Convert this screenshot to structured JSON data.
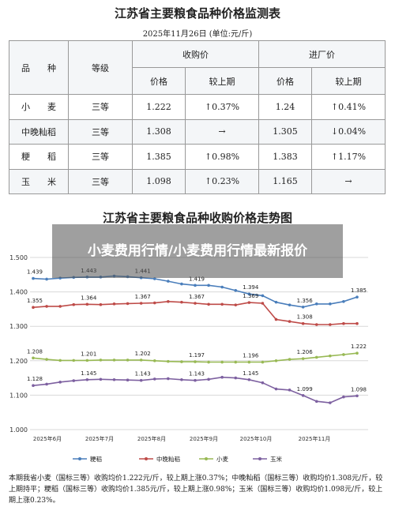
{
  "doc": {
    "title": "江苏省主要粮食品种价格监测表",
    "date": "2025年11月26日 (单位:元/斤)",
    "table": {
      "h_variety": "品　　种",
      "h_grade": "等级",
      "h_purchase": "收购价",
      "h_wholesale": "进厂价",
      "h_price": "价格",
      "h_change": "较上期",
      "rows": [
        {
          "variety": "小　　麦",
          "grade": "三等",
          "p1": "1.222",
          "c1": "↑0.37%",
          "p2": "1.24",
          "c2": "↑0.41%"
        },
        {
          "variety": "中晚籼稻",
          "grade": "三等",
          "p1": "1.308",
          "c1": "→",
          "p2": "1.305",
          "c2": "↓0.04%"
        },
        {
          "variety": "粳　　稻",
          "grade": "三等",
          "p1": "1.385",
          "c1": "↑0.98%",
          "p2": "1.383",
          "c2": "↑1.17%"
        },
        {
          "variety": "玉　　米",
          "grade": "三等",
          "p1": "1.098",
          "c1": "↑0.23%",
          "p2": "1.165",
          "c2": "→"
        }
      ]
    },
    "chart_title": "江苏省主要粮食品种收购价格走势图",
    "overlay": "小麦费用行情/小麦费用行情最新报价",
    "summary": "本期我省小麦（国标三等）收购均价1.222元/斤，较上期上涨0.37%；中晚籼稻（国标三等）收购均价1.308元/斤，较上期持平；粳稻（国标三等）收购均价1.385元/斤，较上期上涨0.98%；玉米（国标三等）收购均价1.098元/斤，较上期上涨0.23%。"
  },
  "chart_data": {
    "type": "line",
    "ylim": [
      1.0,
      1.5
    ],
    "yticks": [
      "1.500",
      "1.400",
      "1.300",
      "1.200",
      "1.100",
      "1.000"
    ],
    "xticks": [
      "2025年6月",
      "2025年7月",
      "2025年8月",
      "2025年9月",
      "2025年10月",
      "2025年11月"
    ],
    "colors": {
      "粳稻": "#4a7ebb",
      "中晚籼稻": "#be4b48",
      "小麦": "#98b954",
      "玉米": "#7d60a0"
    },
    "series": [
      {
        "name": "粳稻",
        "values": [
          1.439,
          1.437,
          1.44,
          1.442,
          1.443,
          1.443,
          1.446,
          1.444,
          1.441,
          1.438,
          1.431,
          1.423,
          1.419,
          1.419,
          1.414,
          1.404,
          1.394,
          1.389,
          1.37,
          1.362,
          1.356,
          1.365,
          1.365,
          1.372,
          1.385
        ],
        "labels": {
          "0": "1.439",
          "4": "1.443",
          "8": "1.441",
          "12": "1.419",
          "16": "1.394",
          "20": "1.356",
          "24": "1.385"
        }
      },
      {
        "name": "中晚籼稻",
        "values": [
          1.355,
          1.358,
          1.358,
          1.363,
          1.364,
          1.363,
          1.365,
          1.366,
          1.367,
          1.368,
          1.372,
          1.37,
          1.367,
          1.364,
          1.364,
          1.362,
          1.369,
          1.367,
          1.32,
          1.314,
          1.308,
          1.305,
          1.305,
          1.308,
          1.308
        ],
        "labels": {
          "0": "1.355",
          "4": "1.364",
          "8": "1.367",
          "12": "1.367",
          "16": "1.369",
          "20": "1.308"
        }
      },
      {
        "name": "小麦",
        "values": [
          1.208,
          1.204,
          1.201,
          1.201,
          1.201,
          1.202,
          1.202,
          1.202,
          1.202,
          1.2,
          1.198,
          1.197,
          1.197,
          1.196,
          1.196,
          1.196,
          1.196,
          1.196,
          1.2,
          1.204,
          1.206,
          1.21,
          1.214,
          1.218,
          1.222
        ],
        "labels": {
          "0": "1.208",
          "4": "1.201",
          "8": "1.202",
          "12": "1.197",
          "16": "1.196",
          "20": "1.206",
          "24": "1.222"
        }
      },
      {
        "name": "玉米",
        "values": [
          1.128,
          1.132,
          1.138,
          1.142,
          1.145,
          1.146,
          1.145,
          1.144,
          1.143,
          1.147,
          1.148,
          1.145,
          1.143,
          1.146,
          1.152,
          1.15,
          1.145,
          1.136,
          1.118,
          1.115,
          1.099,
          1.082,
          1.078,
          1.095,
          1.098
        ],
        "labels": {
          "0": "1.128",
          "4": "1.145",
          "8": "1.143",
          "12": "1.143",
          "16": "1.145",
          "20": "1.099",
          "24": "1.098"
        }
      }
    ],
    "legend": [
      "粳稻",
      "中晚籼稻",
      "小麦",
      "玉米"
    ],
    "legend_position": "bottom"
  }
}
